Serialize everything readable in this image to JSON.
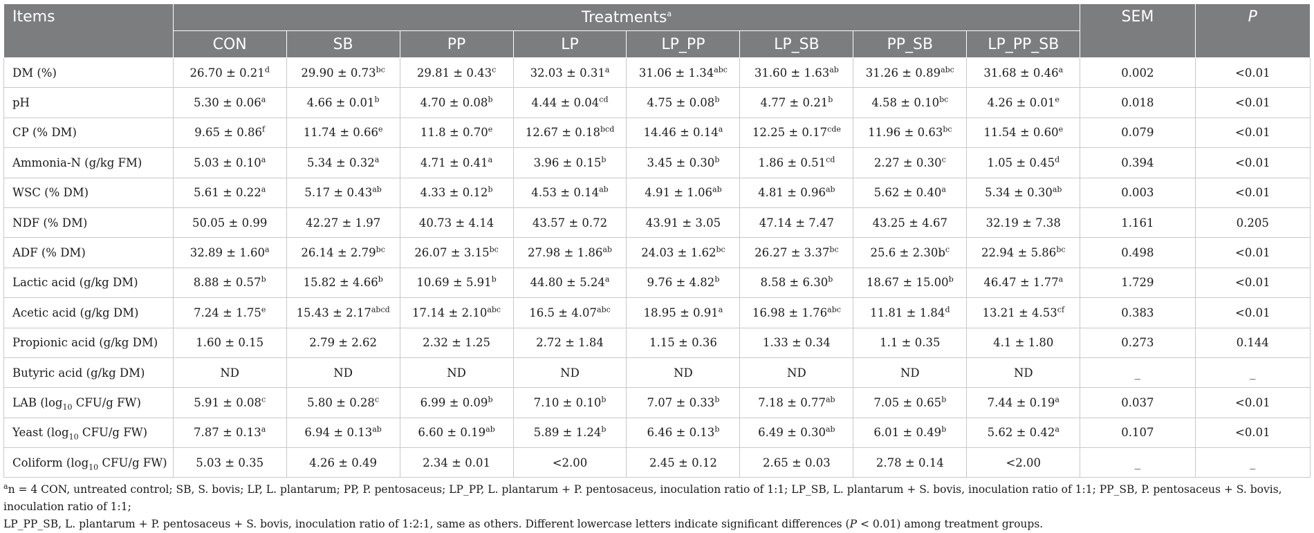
{
  "header": {
    "items_label": "Items",
    "treatments_label": "Treatments",
    "treatments_sup": "a",
    "sem_label": "SEM",
    "p_label": "P",
    "groups": [
      "CON",
      "SB",
      "PP",
      "LP",
      "LP_PP",
      "LP_SB",
      "PP_SB",
      "LP_PP_SB"
    ]
  },
  "rows": [
    {
      "label": "DM (%)",
      "values": [
        [
          "26.70 ± 0.21",
          "d"
        ],
        [
          "29.90 ± 0.73",
          "bc"
        ],
        [
          "29.81 ± 0.43",
          "c"
        ],
        [
          "32.03 ± 0.31",
          "a"
        ],
        [
          "31.06 ± 1.34",
          "abc"
        ],
        [
          "31.60 ± 1.63",
          "ab"
        ],
        [
          "31.26 ± 0.89",
          "abc"
        ],
        [
          "31.68 ± 0.46",
          "a"
        ]
      ],
      "sem": "0.002",
      "p": "<0.01"
    },
    {
      "label": "pH",
      "values": [
        [
          "5.30 ± 0.06",
          "a"
        ],
        [
          "4.66 ± 0.01",
          "b"
        ],
        [
          "4.70 ± 0.08",
          "b"
        ],
        [
          "4.44 ± 0.04",
          "cd"
        ],
        [
          "4.75 ± 0.08",
          "b"
        ],
        [
          "4.77 ± 0.21",
          "b"
        ],
        [
          "4.58 ± 0.10",
          "bc"
        ],
        [
          "4.26 ± 0.01",
          "e"
        ]
      ],
      "sem": "0.018",
      "p": "<0.01"
    },
    {
      "label": "CP (% DM)",
      "values": [
        [
          "9.65 ± 0.86",
          "f"
        ],
        [
          "11.74 ± 0.66",
          "e"
        ],
        [
          "11.8 ± 0.70",
          "e"
        ],
        [
          "12.67 ± 0.18",
          "bcd"
        ],
        [
          "14.46 ± 0.14",
          "a"
        ],
        [
          "12.25 ± 0.17",
          "cde"
        ],
        [
          "11.96 ± 0.63",
          "bc"
        ],
        [
          "11.54 ± 0.60",
          "e"
        ]
      ],
      "sem": "0.079",
      "p": "<0.01"
    },
    {
      "label": "Ammonia-N (g/kg FM)",
      "values": [
        [
          "5.03 ± 0.10",
          "a"
        ],
        [
          "5.34 ± 0.32",
          "a"
        ],
        [
          "4.71 ± 0.41",
          "a"
        ],
        [
          "3.96 ± 0.15",
          "b"
        ],
        [
          "3.45 ± 0.30",
          "b"
        ],
        [
          "1.86 ± 0.51",
          "cd"
        ],
        [
          "2.27 ± 0.30",
          "c"
        ],
        [
          "1.05 ± 0.45",
          "d"
        ]
      ],
      "sem": "0.394",
      "p": "<0.01"
    },
    {
      "label": "WSC (% DM)",
      "values": [
        [
          "5.61 ± 0.22",
          "a"
        ],
        [
          "5.17 ± 0.43",
          "ab"
        ],
        [
          "4.33 ± 0.12",
          "b"
        ],
        [
          "4.53 ± 0.14",
          "ab"
        ],
        [
          "4.91 ± 1.06",
          "ab"
        ],
        [
          "4.81 ± 0.96",
          "ab"
        ],
        [
          "5.62 ± 0.40",
          "a"
        ],
        [
          "5.34 ± 0.30",
          "ab"
        ]
      ],
      "sem": "0.003",
      "p": "<0.01"
    },
    {
      "label": "NDF (% DM)",
      "values": [
        [
          "50.05 ± 0.99",
          ""
        ],
        [
          "42.27 ± 1.97",
          ""
        ],
        [
          "40.73 ± 4.14",
          ""
        ],
        [
          "43.57 ± 0.72",
          ""
        ],
        [
          "43.91 ± 3.05",
          ""
        ],
        [
          "47.14 ± 7.47",
          ""
        ],
        [
          "43.25 ± 4.67",
          ""
        ],
        [
          "32.19 ± 7.38",
          ""
        ]
      ],
      "sem": "1.161",
      "p": "0.205"
    },
    {
      "label": "ADF (% DM)",
      "values": [
        [
          "32.89 ± 1.60",
          "a"
        ],
        [
          "26.14 ± 2.79",
          "bc"
        ],
        [
          "26.07 ± 3.15",
          "bc"
        ],
        [
          "27.98 ± 1.86",
          "ab"
        ],
        [
          "24.03 ± 1.62",
          "bc"
        ],
        [
          "26.27 ± 3.37",
          "bc"
        ],
        [
          "25.6 ± 2.30b",
          "c"
        ],
        [
          "22.94 ± 5.86",
          "bc"
        ]
      ],
      "sem": "0.498",
      "p": "<0.01"
    },
    {
      "label": "Lactic acid (g/kg DM)",
      "values": [
        [
          "8.88 ± 0.57",
          "b"
        ],
        [
          "15.82 ± 4.66",
          "b"
        ],
        [
          "10.69 ± 5.91",
          "b"
        ],
        [
          "44.80 ± 5.24",
          "a"
        ],
        [
          "9.76 ± 4.82",
          "b"
        ],
        [
          "8.58 ± 6.30",
          "b"
        ],
        [
          "18.67 ± 15.00",
          "b"
        ],
        [
          "46.47 ± 1.77",
          "a"
        ]
      ],
      "sem": "1.729",
      "p": "<0.01"
    },
    {
      "label": "Acetic acid (g/kg DM)",
      "values": [
        [
          "7.24 ± 1.75",
          "e"
        ],
        [
          "15.43 ± 2.17",
          "abcd"
        ],
        [
          "17.14 ± 2.10",
          "abc"
        ],
        [
          "16.5 ± 4.07",
          "abc"
        ],
        [
          "18.95 ± 0.91",
          "a"
        ],
        [
          "16.98 ± 1.76",
          "abc"
        ],
        [
          "11.81 ± 1.84",
          "d"
        ],
        [
          "13.21 ± 4.53",
          "cf"
        ]
      ],
      "sem": "0.383",
      "p": "<0.01"
    },
    {
      "label": "Propionic acid (g/kg DM)",
      "values": [
        [
          "1.60 ± 0.15",
          ""
        ],
        [
          "2.79 ± 2.62",
          ""
        ],
        [
          "2.32 ± 1.25",
          ""
        ],
        [
          "2.72 ± 1.84",
          ""
        ],
        [
          "1.15 ± 0.36",
          ""
        ],
        [
          "1.33 ± 0.34",
          ""
        ],
        [
          "1.1 ± 0.35",
          ""
        ],
        [
          "4.1 ± 1.80",
          ""
        ]
      ],
      "sem": "0.273",
      "p": "0.144"
    },
    {
      "label": "Butyric acid (g/kg DM)",
      "values": [
        [
          "ND",
          ""
        ],
        [
          "ND",
          ""
        ],
        [
          "ND",
          ""
        ],
        [
          "ND",
          ""
        ],
        [
          "ND",
          ""
        ],
        [
          "ND",
          ""
        ],
        [
          "ND",
          ""
        ],
        [
          "ND",
          ""
        ]
      ],
      "sem": "_",
      "p": "_"
    },
    {
      "label_pre": "LAB (log",
      "label_sub": "10",
      "label_post": " CFU/g FW)",
      "values": [
        [
          "5.91 ± 0.08",
          "c"
        ],
        [
          "5.80 ± 0.28",
          "c"
        ],
        [
          "6.99 ± 0.09",
          "b"
        ],
        [
          "7.10 ± 0.10",
          "b"
        ],
        [
          "7.07 ± 0.33",
          "b"
        ],
        [
          "7.18 ± 0.77",
          "ab"
        ],
        [
          "7.05 ± 0.65",
          "b"
        ],
        [
          "7.44 ± 0.19",
          "a"
        ]
      ],
      "sem": "0.037",
      "p": "<0.01"
    },
    {
      "label_pre": "Yeast (log",
      "label_sub": "10",
      "label_post": " CFU/g FW)",
      "values": [
        [
          "7.87 ± 0.13",
          "a"
        ],
        [
          "6.94 ± 0.13",
          "ab"
        ],
        [
          "6.60 ± 0.19",
          "ab"
        ],
        [
          "5.89 ± 1.24",
          "b"
        ],
        [
          "6.46 ± 0.13",
          "b"
        ],
        [
          "6.49 ± 0.30",
          "ab"
        ],
        [
          "6.01 ± 0.49",
          "b"
        ],
        [
          "5.62 ± 0.42",
          "a"
        ]
      ],
      "sem": "0.107",
      "p": "<0.01"
    },
    {
      "label_pre": "Coliform (log",
      "label_sub": "10",
      "label_post": " CFU/g FW)",
      "values": [
        [
          "5.03 ± 0.35",
          ""
        ],
        [
          "4.26 ± 0.49",
          ""
        ],
        [
          "2.34 ± 0.01",
          ""
        ],
        [
          "<2.00",
          ""
        ],
        [
          "2.45 ± 0.12",
          ""
        ],
        [
          "2.65 ± 0.03",
          ""
        ],
        [
          "2.78 ± 0.14",
          ""
        ],
        [
          "<2.00",
          ""
        ]
      ],
      "sem": "_",
      "p": "_"
    }
  ],
  "footnote": {
    "sup": "a",
    "line1": "n = 4 CON, untreated control; SB, S. bovis; LP, L. plantarum; PP, P. pentosaceus; LP_PP, L. plantarum + P. pentosaceus, inoculation ratio of 1:1; LP_SB, L. plantarum + S. bovis, inoculation ratio of 1:1; PP_SB, P. pentosaceus + S. bovis, inoculation ratio of 1:1;",
    "line2_a": "LP_PP_SB, L. plantarum + P. pentosaceus + S. bovis, inoculation ratio of 1:2:1, same as others. Different lowercase letters indicate significant differences (",
    "line2_p": "P",
    "line2_b": " < 0.01) among treatment groups."
  }
}
